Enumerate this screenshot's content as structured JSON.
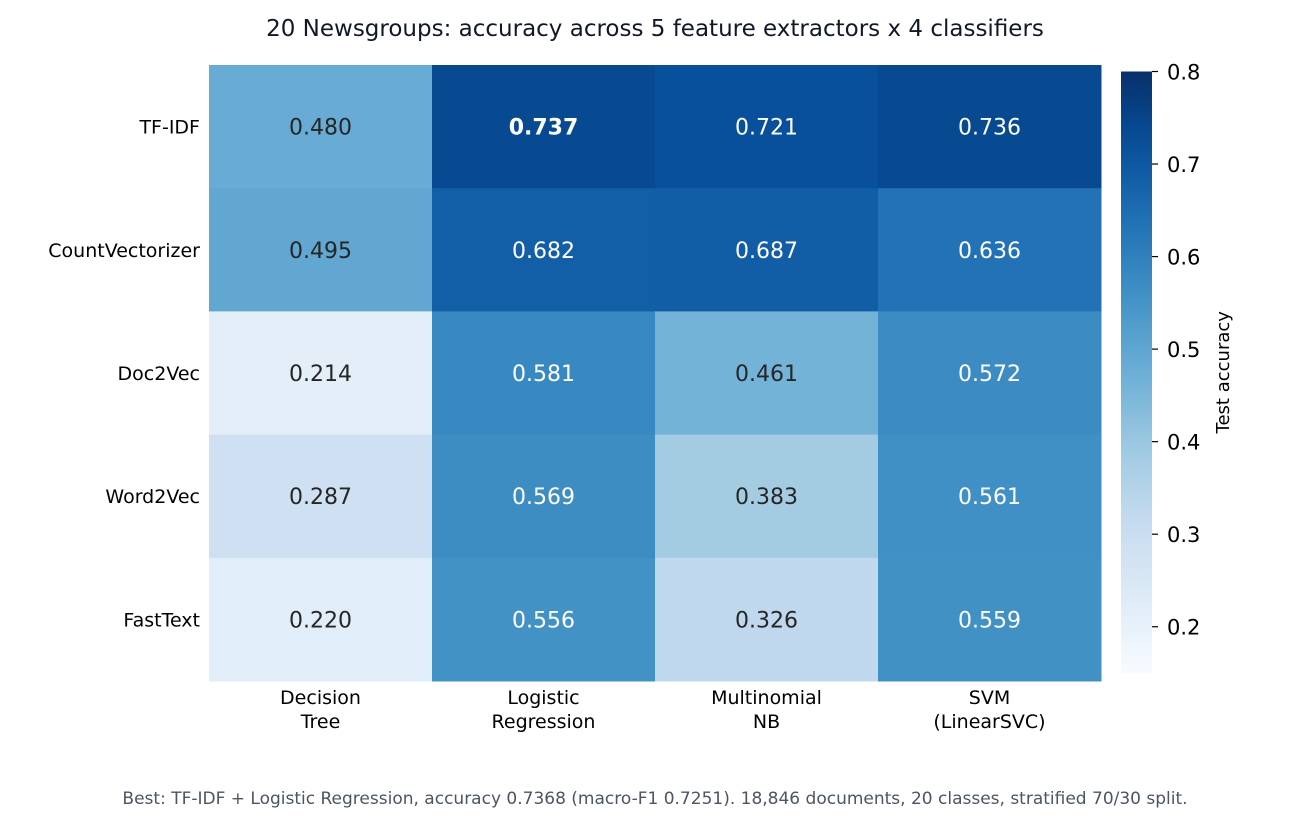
{
  "chart_data": {
    "type": "heatmap",
    "title": "20 Newsgroups: accuracy across 5 feature extractors x 4 classifiers",
    "rows": [
      "TF-IDF",
      "CountVectorizer",
      "Doc2Vec",
      "Word2Vec",
      "FastText"
    ],
    "columns": [
      [
        "Decision",
        "Tree"
      ],
      [
        "Logistic",
        "Regression"
      ],
      [
        "Multinomial",
        "NB"
      ],
      [
        "SVM",
        "(LinearSVC)"
      ]
    ],
    "values": [
      [
        0.48,
        0.737,
        0.721,
        0.736
      ],
      [
        0.495,
        0.682,
        0.687,
        0.636
      ],
      [
        0.214,
        0.581,
        0.461,
        0.572
      ],
      [
        0.287,
        0.569,
        0.383,
        0.561
      ],
      [
        0.22,
        0.556,
        0.326,
        0.559
      ]
    ],
    "value_labels": [
      [
        "0.480",
        "0.737",
        "0.721",
        "0.736"
      ],
      [
        "0.495",
        "0.682",
        "0.687",
        "0.636"
      ],
      [
        "0.214",
        "0.581",
        "0.461",
        "0.572"
      ],
      [
        "0.287",
        "0.569",
        "0.383",
        "0.561"
      ],
      [
        "0.220",
        "0.556",
        "0.326",
        "0.559"
      ]
    ],
    "highlight": {
      "row": 0,
      "col": 1
    },
    "colorbar": {
      "label": "Test accuracy",
      "min": 0.15,
      "max": 0.8,
      "ticks": [
        0.2,
        0.3,
        0.4,
        0.5,
        0.6,
        0.7,
        0.8
      ],
      "tick_labels": [
        "0.2",
        "0.3",
        "0.4",
        "0.5",
        "0.6",
        "0.7",
        "0.8"
      ],
      "colormap": "Blues"
    }
  },
  "footer": "Best: TF-IDF + Logistic Regression, accuracy 0.7368 (macro-F1 0.7251).  18,846 documents, 20 classes, stratified 70/30 split."
}
